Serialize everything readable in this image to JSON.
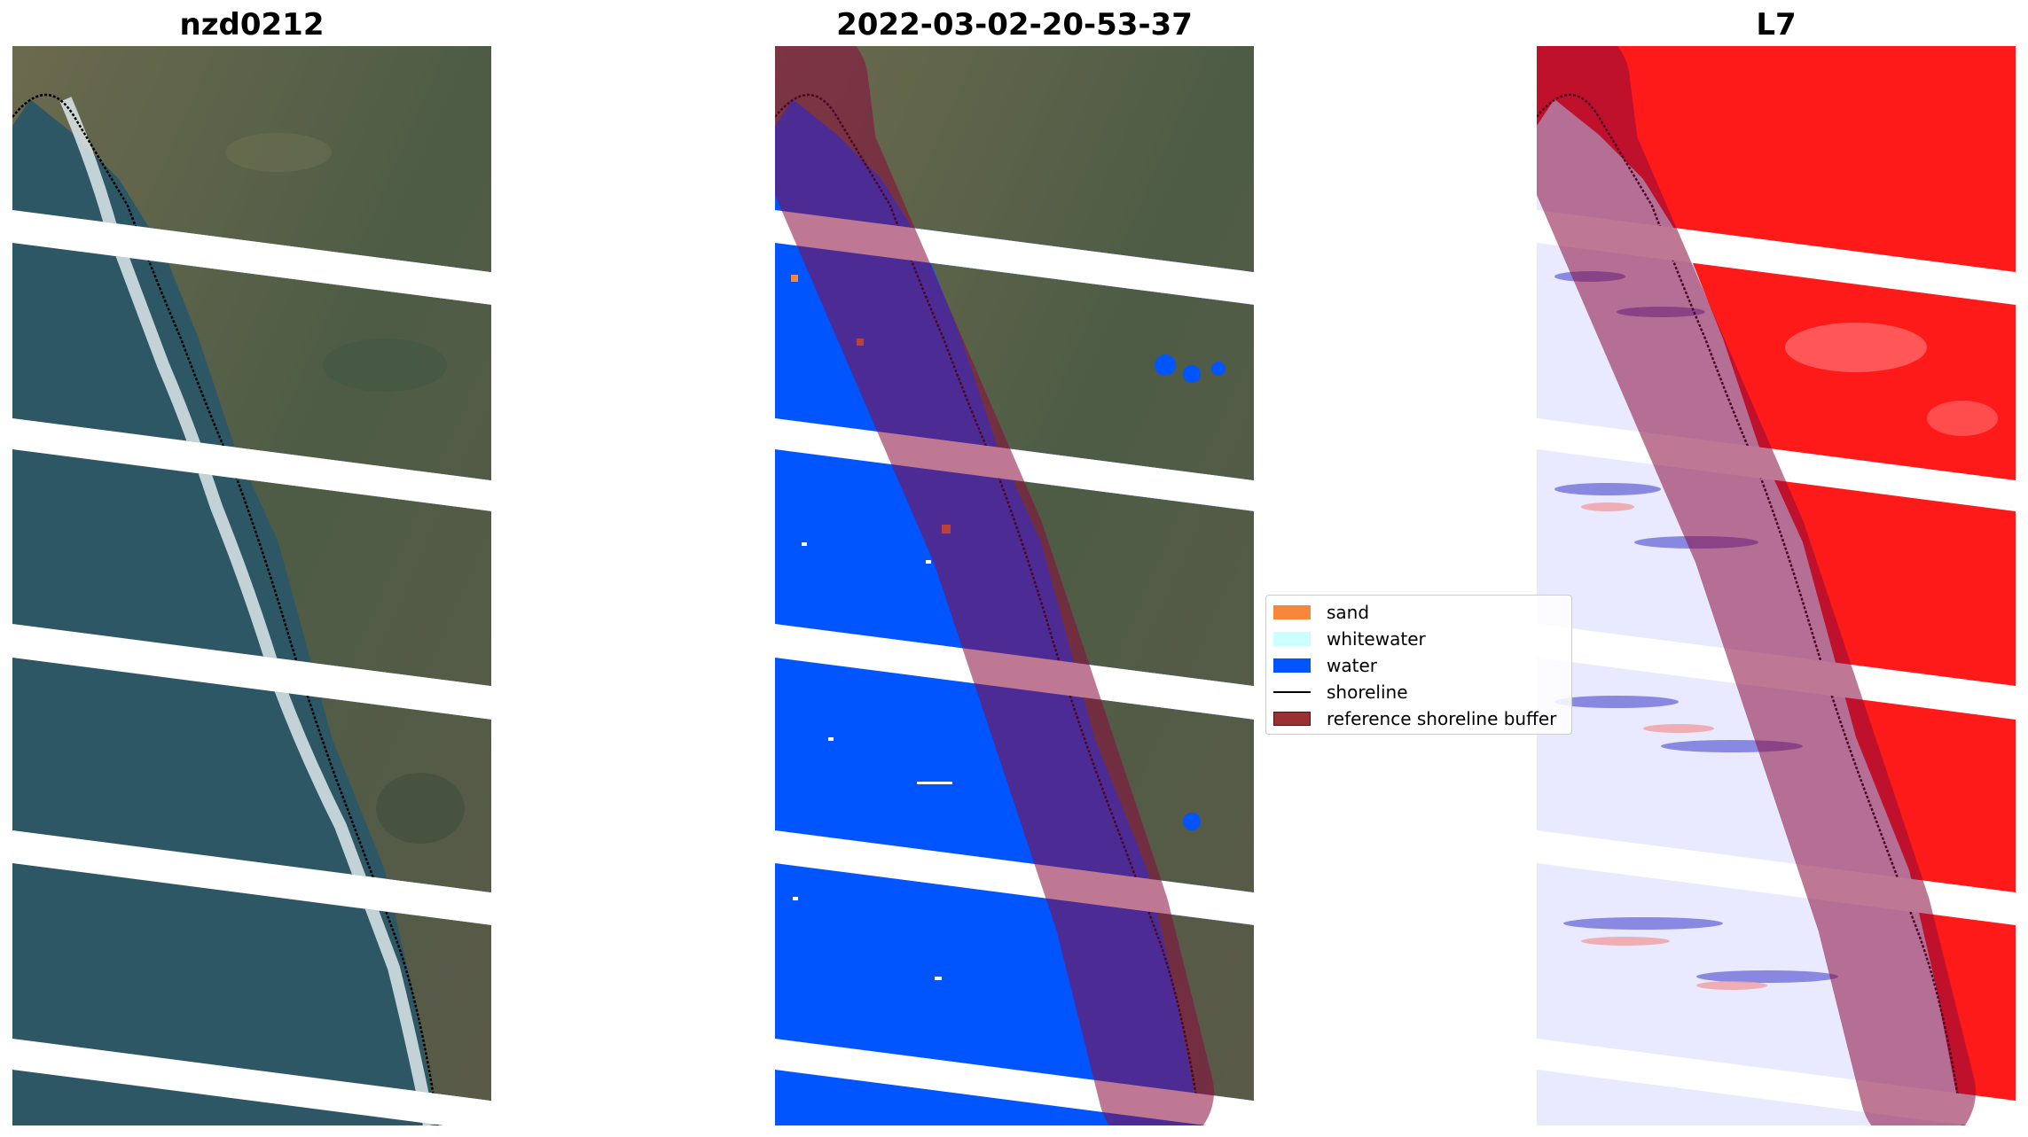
{
  "panels": [
    {
      "title": "nzd0212",
      "kind": "rgb-image"
    },
    {
      "title": "2022-03-02-20-53-37",
      "kind": "classified-image"
    },
    {
      "title": "L7",
      "kind": "index-image"
    }
  ],
  "legend": {
    "items": [
      {
        "label": "sand",
        "color": "#f5883a",
        "shape": "patch"
      },
      {
        "label": "whitewater",
        "color": "#ccffff",
        "shape": "patch"
      },
      {
        "label": "water",
        "color": "#0055ff",
        "shape": "patch"
      },
      {
        "label": "shoreline",
        "color": "#000000",
        "shape": "line"
      },
      {
        "label": "reference shoreline buffer",
        "color": "#9a2f34",
        "shape": "patch"
      }
    ]
  },
  "colors": {
    "land": "#56634a",
    "land_dark": "#3e4d3a",
    "sea": "#2f5b6a",
    "surf": "#d8e8ea",
    "water_class": "#0055ff",
    "buffer": "#8b0a3c",
    "index_high": "#ff1a1a",
    "index_low": "#e8e8ff"
  }
}
